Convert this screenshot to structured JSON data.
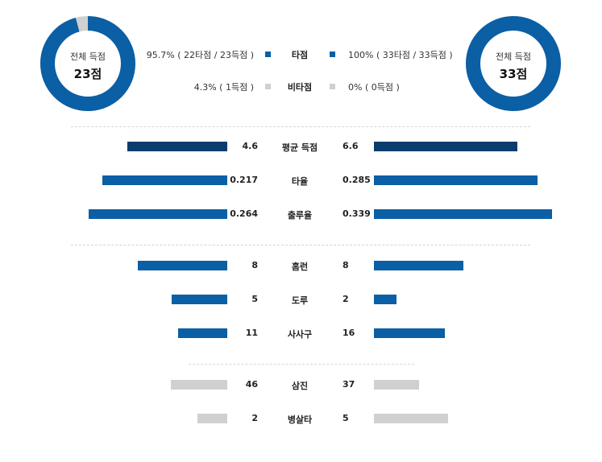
{
  "left_team": {
    "total_label": "전체 득점",
    "total_value": "23점",
    "hit_fraction": 0.957
  },
  "right_team": {
    "total_label": "전체 득점",
    "total_value": "33점",
    "hit_fraction": 1.0
  },
  "legend": {
    "hit": {
      "label": "타점",
      "left_text": "95.7% ( 22타점 / 23득점 )",
      "right_text": "100% ( 33타점 / 33득점 )",
      "color": "#0a5fa5"
    },
    "nonhit": {
      "label": "비타점",
      "left_text": "4.3% ( 1득점 )",
      "right_text": "0% ( 0득점 )",
      "color": "#d0d0d0"
    }
  },
  "colors": {
    "dark_blue": "#083d6e",
    "blue": "#0a5fa5",
    "gray": "#d0d0d0"
  },
  "stats": [
    {
      "label": "평균 득점",
      "left": "4.6",
      "right": "6.6",
      "left_num": 4.6,
      "right_num": 6.6,
      "max": 8.2,
      "color": "dark_blue"
    },
    {
      "label": "타율",
      "left": "0.217",
      "right": "0.285",
      "left_num": 0.217,
      "right_num": 0.285,
      "max": 0.31,
      "color": "blue"
    },
    {
      "label": "출루율",
      "left": "0.264",
      "right": "0.339",
      "left_num": 0.264,
      "right_num": 0.339,
      "max": 0.339,
      "color": "blue"
    },
    {
      "label": "홈런",
      "left": "8",
      "right": "8",
      "left_num": 8,
      "right_num": 8,
      "max": 16,
      "color": "blue"
    },
    {
      "label": "도루",
      "left": "5",
      "right": "2",
      "left_num": 5,
      "right_num": 2,
      "max": 16,
      "color": "blue"
    },
    {
      "label": "사사구",
      "left": "11",
      "right": "16",
      "left_num": 11,
      "right_num": 16,
      "max": 40,
      "color": "blue"
    },
    {
      "label": "삼진",
      "left": "46",
      "right": "37",
      "left_num": 46,
      "right_num": 37,
      "max": 145,
      "color": "gray"
    },
    {
      "label": "병살타",
      "left": "2",
      "right": "5",
      "left_num": 2,
      "right_num": 5,
      "max": 12,
      "color": "gray"
    }
  ]
}
